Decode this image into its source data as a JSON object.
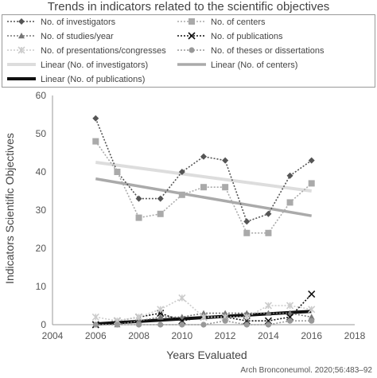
{
  "chart_data": {
    "type": "line",
    "title": "Trends in indicators related to the scientific objectives",
    "xlabel": "Years Evaluated",
    "ylabel": "Indicators Scientific Objectives",
    "xlim": [
      2004,
      2018
    ],
    "ylim": [
      0,
      60
    ],
    "xticks": [
      2004,
      2006,
      2008,
      2010,
      2012,
      2014,
      2016,
      2018
    ],
    "yticks": [
      0,
      10,
      20,
      30,
      40,
      50,
      60
    ],
    "grid": false,
    "legend_position": "top",
    "x": [
      2006,
      2007,
      2008,
      2009,
      2010,
      2011,
      2012,
      2013,
      2014,
      2015,
      2016
    ],
    "series": [
      {
        "name": "No. of investigators",
        "values": [
          54,
          40,
          33,
          33,
          40,
          44,
          43,
          27,
          29,
          39,
          43
        ],
        "color": "#555555",
        "marker": "diamond"
      },
      {
        "name": "No. of centers",
        "values": [
          48,
          40,
          28,
          29,
          34,
          36,
          36,
          24,
          24,
          32,
          37
        ],
        "color": "#aaaaaa",
        "marker": "square"
      },
      {
        "name": "No. of studies/year",
        "values": [
          0,
          0,
          1,
          2,
          2,
          3,
          3,
          3,
          3,
          3,
          2
        ],
        "color": "#777777",
        "marker": "triangle"
      },
      {
        "name": "No. of publications",
        "values": [
          0,
          1,
          2,
          3,
          1,
          2,
          2,
          1,
          1,
          2,
          8
        ],
        "color": "#111111",
        "marker": "x"
      },
      {
        "name": "No. of presentations/congresses",
        "values": [
          2,
          1,
          2,
          4,
          7,
          2,
          2,
          2,
          5,
          5,
          4
        ],
        "color": "#cccccc",
        "marker": "star"
      },
      {
        "name": "No. of theses or dissertations",
        "values": [
          0,
          0,
          0,
          0,
          0,
          0,
          1,
          0,
          0,
          1,
          1
        ],
        "color": "#999999",
        "marker": "circle"
      }
    ],
    "trendlines": [
      {
        "name": "Linear (No. of investigators)",
        "x": [
          2006,
          2016
        ],
        "values": [
          42.5,
          35
        ],
        "color": "#dddddd",
        "width": 4
      },
      {
        "name": "Linear (No. of centers)",
        "x": [
          2006,
          2016
        ],
        "values": [
          38.2,
          28.5
        ],
        "color": "#aaaaaa",
        "width": 3.5
      },
      {
        "name": "Linear (No. of publications)",
        "x": [
          2006,
          2016
        ],
        "values": [
          0.2,
          3.5
        ],
        "color": "#111111",
        "width": 4
      }
    ]
  },
  "credit": "Arch Bronconeumol. 2020;56:483–92"
}
